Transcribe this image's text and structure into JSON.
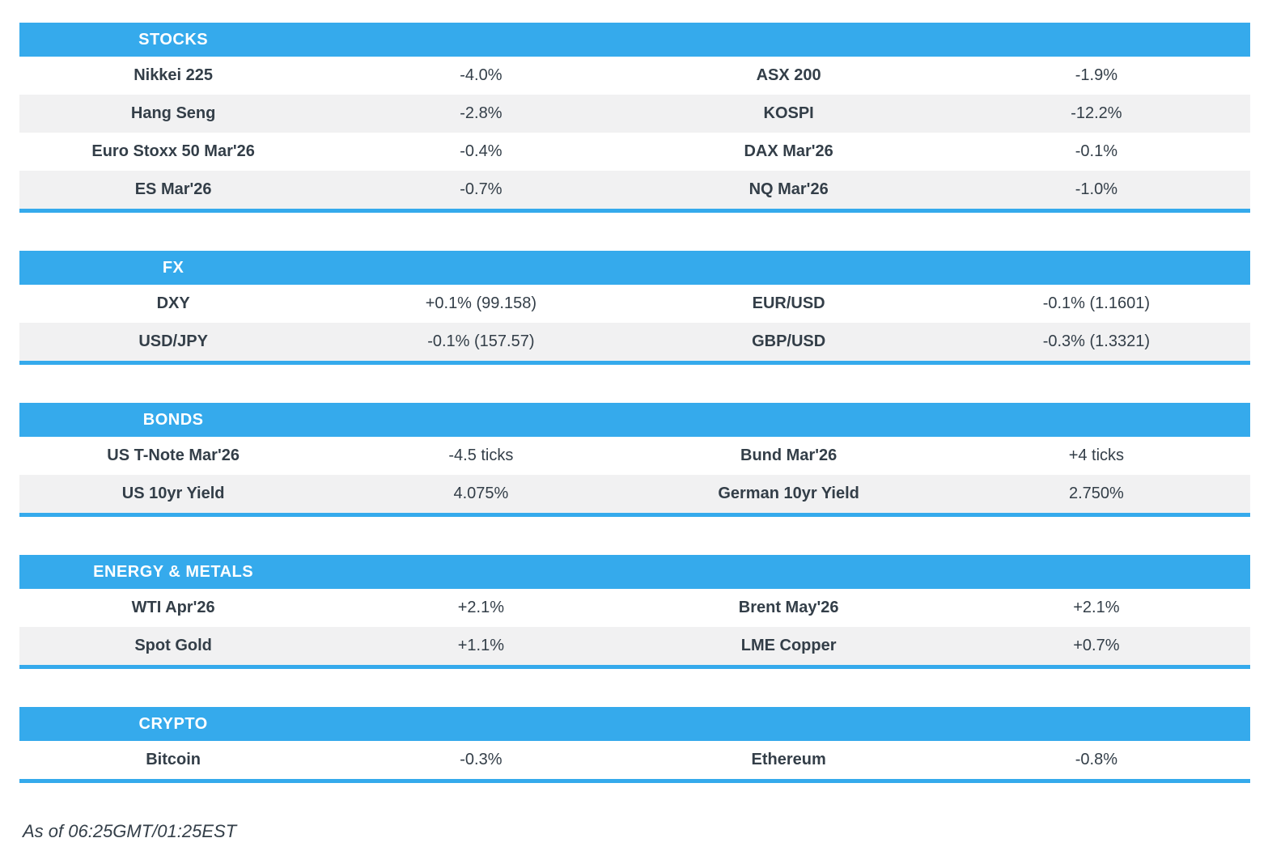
{
  "colors": {
    "accent": "#35aaec",
    "stripe": "#f1f1f2",
    "text": "#333e48",
    "header_text": "#ffffff",
    "background": "#ffffff"
  },
  "sections": [
    {
      "title": "STOCKS",
      "rows": [
        {
          "left": {
            "label": "Nikkei 225",
            "value": "-4.0%"
          },
          "right": {
            "label": "ASX 200",
            "value": "-1.9%"
          }
        },
        {
          "left": {
            "label": "Hang Seng",
            "value": "-2.8%"
          },
          "right": {
            "label": "KOSPI",
            "value": "-12.2%"
          }
        },
        {
          "left": {
            "label": "Euro Stoxx 50 Mar'26",
            "value": "-0.4%"
          },
          "right": {
            "label": "DAX Mar'26",
            "value": "-0.1%"
          }
        },
        {
          "left": {
            "label": "ES Mar'26",
            "value": "-0.7%"
          },
          "right": {
            "label": "NQ Mar'26",
            "value": "-1.0%"
          }
        }
      ]
    },
    {
      "title": "FX",
      "rows": [
        {
          "left": {
            "label": "DXY",
            "value": "+0.1% (99.158)"
          },
          "right": {
            "label": "EUR/USD",
            "value": "-0.1% (1.1601)"
          }
        },
        {
          "left": {
            "label": "USD/JPY",
            "value": "-0.1% (157.57)"
          },
          "right": {
            "label": "GBP/USD",
            "value": "-0.3% (1.3321)"
          }
        }
      ]
    },
    {
      "title": "BONDS",
      "rows": [
        {
          "left": {
            "label": "US T-Note Mar'26",
            "value": "-4.5 ticks"
          },
          "right": {
            "label": "Bund Mar'26",
            "value": "+4 ticks"
          }
        },
        {
          "left": {
            "label": "US 10yr Yield",
            "value": "4.075%"
          },
          "right": {
            "label": "German 10yr Yield",
            "value": "2.750%"
          }
        }
      ]
    },
    {
      "title": "ENERGY & METALS",
      "rows": [
        {
          "left": {
            "label": "WTI Apr'26",
            "value": "+2.1%"
          },
          "right": {
            "label": "Brent May'26",
            "value": "+2.1%"
          }
        },
        {
          "left": {
            "label": "Spot Gold",
            "value": "+1.1%"
          },
          "right": {
            "label": "LME Copper",
            "value": "+0.7%"
          }
        }
      ]
    },
    {
      "title": "CRYPTO",
      "rows": [
        {
          "left": {
            "label": "Bitcoin",
            "value": "-0.3%"
          },
          "right": {
            "label": "Ethereum",
            "value": "-0.8%"
          }
        }
      ]
    }
  ],
  "footer": {
    "timestamp": "As of 06:25GMT/01:25EST"
  }
}
